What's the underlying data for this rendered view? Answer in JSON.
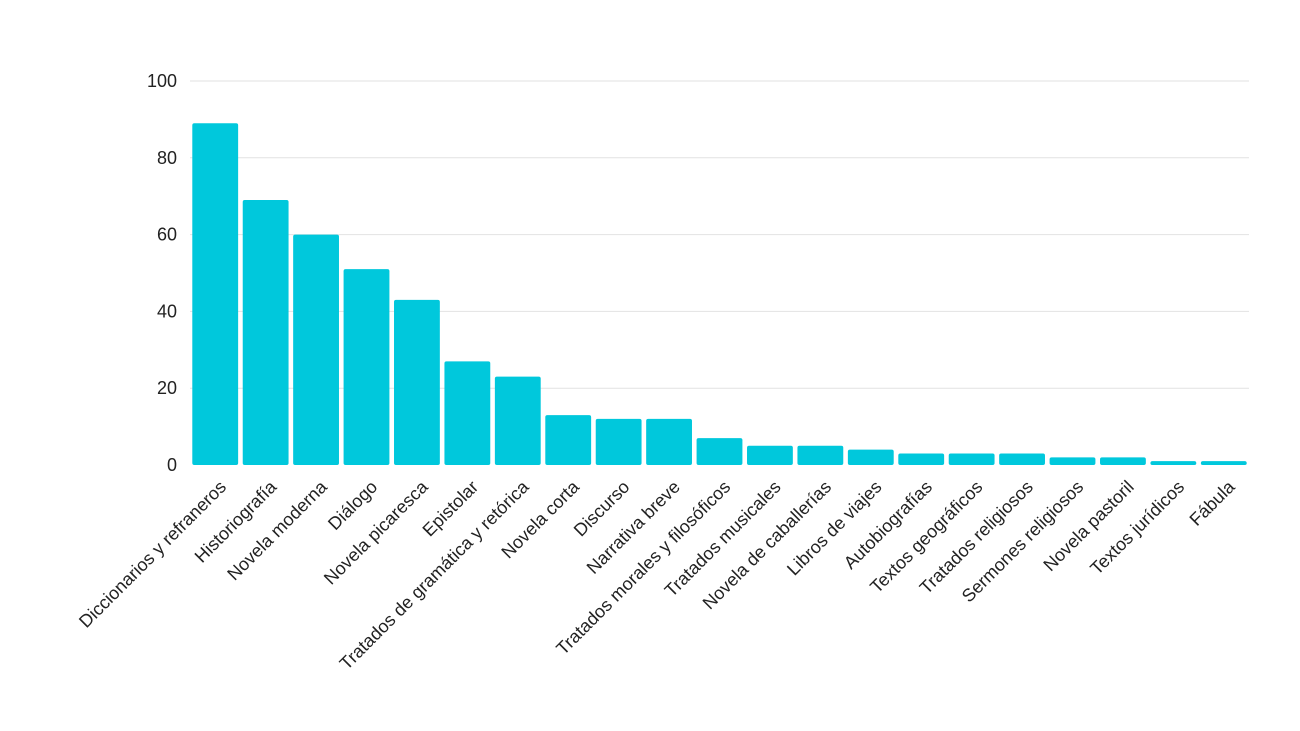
{
  "chart_data": {
    "type": "bar",
    "title": "",
    "xlabel": "",
    "ylabel": "",
    "ylim": [
      0,
      100
    ],
    "yticks": [
      0,
      20,
      40,
      60,
      80,
      100
    ],
    "grid": true,
    "bar_color": "#00c8dc",
    "categories": [
      "Diccionarios y refraneros",
      "Historiografía",
      "Novela moderna",
      "Diálogo",
      "Novela picaresca",
      "Epistolar",
      "Tratados de gramática y retórica",
      "Novela corta",
      "Discurso",
      "Narrativa breve",
      "Tratados morales y filosóficos",
      "Tratados musicales",
      "Novela de caballerías",
      "Libros de viajes",
      "Autobiografías",
      "Textos geográficos",
      "Tratados religiosos",
      "Sermones religiosos",
      "Novela pastoril",
      "Textos jurídicos",
      "Fábula"
    ],
    "values": [
      89,
      69,
      60,
      51,
      43,
      27,
      23,
      13,
      12,
      12,
      7,
      5,
      5,
      4,
      3,
      3,
      3,
      2,
      2,
      1,
      1
    ]
  }
}
